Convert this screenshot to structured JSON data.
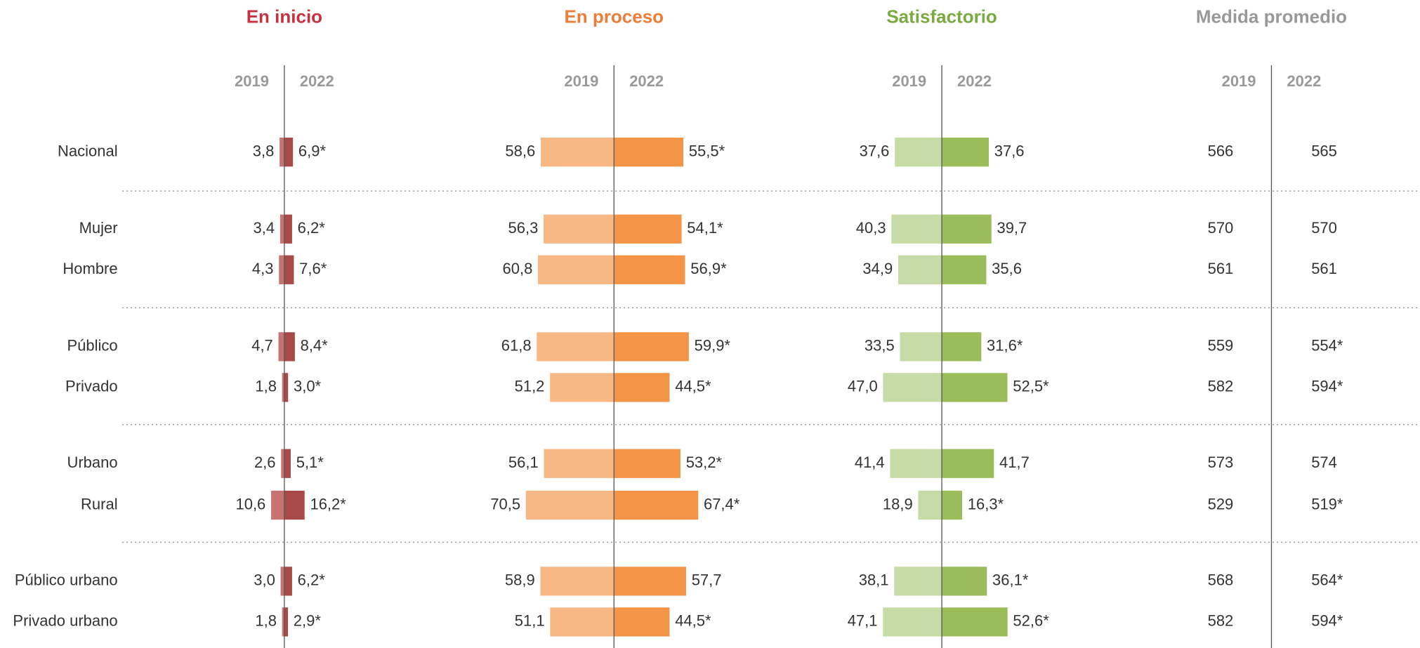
{
  "categories": [
    "Nacional",
    "Mujer",
    "Hombre",
    "Público",
    "Privado",
    "Urbano",
    "Rural",
    "Público urbano",
    "Privado urbano"
  ],
  "chart_data": [
    {
      "type": "bar",
      "title": "En inicio",
      "title_color": "#c8313f",
      "series": [
        {
          "name": "2019",
          "color": "#c97272",
          "values": [
            3.8,
            3.4,
            4.3,
            4.7,
            1.8,
            2.6,
            10.6,
            3.0,
            1.8
          ],
          "value_labels": [
            "3,8",
            "3,4",
            "4,3",
            "4,7",
            "1,8",
            "2,6",
            "10,6",
            "3,0",
            "1,8"
          ]
        },
        {
          "name": "2022",
          "color": "#a84a4a",
          "values": [
            6.9,
            6.2,
            7.6,
            8.4,
            3.0,
            5.1,
            16.2,
            6.2,
            2.9
          ],
          "value_labels": [
            "6,9*",
            "6,2*",
            "7,6*",
            "8,4*",
            "3,0*",
            "5,1*",
            "16,2*",
            "6,2*",
            "2,9*"
          ]
        }
      ]
    },
    {
      "type": "bar",
      "title": "En proceso",
      "title_color": "#ef7d3a",
      "series": [
        {
          "name": "2019",
          "color": "#f8b885",
          "values": [
            58.6,
            56.3,
            60.8,
            61.8,
            51.2,
            56.1,
            70.5,
            58.9,
            51.1
          ],
          "value_labels": [
            "58,6",
            "56,3",
            "60,8",
            "61,8",
            "51,2",
            "56,1",
            "70,5",
            "58,9",
            "51,1"
          ]
        },
        {
          "name": "2022",
          "color": "#f39447",
          "values": [
            55.5,
            54.1,
            56.9,
            59.9,
            44.5,
            53.2,
            67.4,
            57.7,
            44.5
          ],
          "value_labels": [
            "55,5*",
            "54,1*",
            "56,9*",
            "59,9*",
            "44,5*",
            "53,2*",
            "67,4*",
            "57,7",
            "44,5*"
          ]
        }
      ]
    },
    {
      "type": "bar",
      "title": "Satisfactorio",
      "title_color": "#7aaa42",
      "series": [
        {
          "name": "2019",
          "color": "#c7dba6",
          "values": [
            37.6,
            40.3,
            34.9,
            33.5,
            47.0,
            41.4,
            18.9,
            38.1,
            47.1
          ],
          "value_labels": [
            "37,6",
            "40,3",
            "34,9",
            "33,5",
            "47,0",
            "41,4",
            "18,9",
            "38,1",
            "47,1"
          ]
        },
        {
          "name": "2022",
          "color": "#9bbd59",
          "values": [
            37.6,
            39.7,
            35.6,
            31.6,
            52.5,
            41.7,
            16.3,
            36.1,
            52.6
          ],
          "value_labels": [
            "37,6",
            "39,7",
            "35,6",
            "31,6*",
            "52,5*",
            "41,7",
            "16,3*",
            "36,1*",
            "52,6*"
          ]
        }
      ]
    },
    {
      "type": "table",
      "title": "Medida promedio",
      "title_color": "#999999",
      "series": [
        {
          "name": "2019",
          "values": [
            566,
            570,
            561,
            559,
            582,
            573,
            529,
            568,
            582
          ],
          "value_labels": [
            "566",
            "570",
            "561",
            "559",
            "582",
            "573",
            "529",
            "568",
            "582"
          ]
        },
        {
          "name": "2022",
          "values": [
            565,
            570,
            561,
            554,
            594,
            574,
            519,
            564,
            594
          ],
          "value_labels": [
            "565",
            "570",
            "561",
            "554*",
            "594*",
            "574",
            "519*",
            "564*",
            "594*"
          ]
        }
      ]
    }
  ]
}
